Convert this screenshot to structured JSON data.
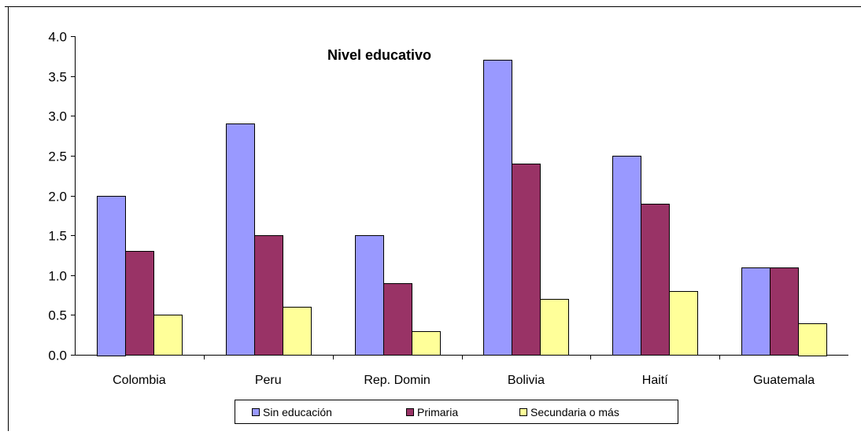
{
  "chart_data": {
    "type": "bar",
    "title": "Nivel educativo",
    "xlabel": "",
    "ylabel": "",
    "ylim": [
      0,
      4
    ],
    "yticks": [
      "0.0",
      "0.5",
      "1.0",
      "1.5",
      "2.0",
      "2.5",
      "3.0",
      "3.5",
      "4.0"
    ],
    "categories": [
      "Colombia",
      "Peru",
      "Rep. Domin",
      "Bolivia",
      "Haití",
      "Guatemala"
    ],
    "series": [
      {
        "name": "Sin educación",
        "color": "#9999ff",
        "values": [
          2.0,
          2.9,
          1.5,
          3.7,
          2.5,
          1.1
        ]
      },
      {
        "name": "Primaria",
        "color": "#993366",
        "values": [
          1.3,
          1.5,
          0.9,
          2.4,
          1.9,
          1.1
        ]
      },
      {
        "name": "Secundaria o más",
        "color": "#ffff99",
        "values": [
          0.5,
          0.6,
          0.3,
          0.7,
          0.8,
          0.4
        ]
      }
    ],
    "grid": false,
    "legend_position": "bottom"
  }
}
